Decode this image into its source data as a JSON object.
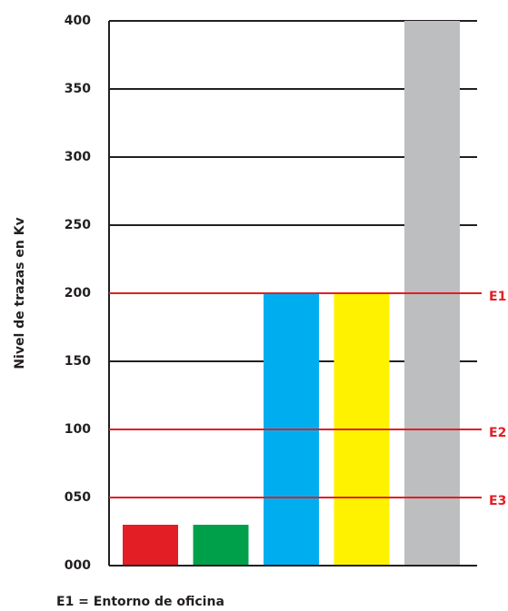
{
  "chart_data": {
    "type": "bar",
    "y_label": "Nivel de trazas en Kv",
    "categories": [
      null,
      null,
      null,
      null,
      null
    ],
    "values": [
      30,
      30,
      200,
      200,
      400
    ],
    "colors": [
      "#e31e24",
      "#00a04b",
      "#00aeef",
      "#fff200",
      "#bcbec0"
    ],
    "ylim": [
      0,
      400
    ],
    "yticks": [
      {
        "value": 0,
        "label": "000"
      },
      {
        "value": 50,
        "label": "050"
      },
      100,
      150,
      200,
      250,
      300,
      350,
      400
    ],
    "grid": true,
    "reference_lines": [
      {
        "label": "E1",
        "value": 200,
        "color": "#e31e24"
      },
      {
        "label": "E2",
        "value": 100,
        "color": "#e31e24"
      },
      {
        "label": "E3",
        "value": 50,
        "color": "#e31e24"
      }
    ],
    "note": "E1 = Entorno de oficina"
  }
}
